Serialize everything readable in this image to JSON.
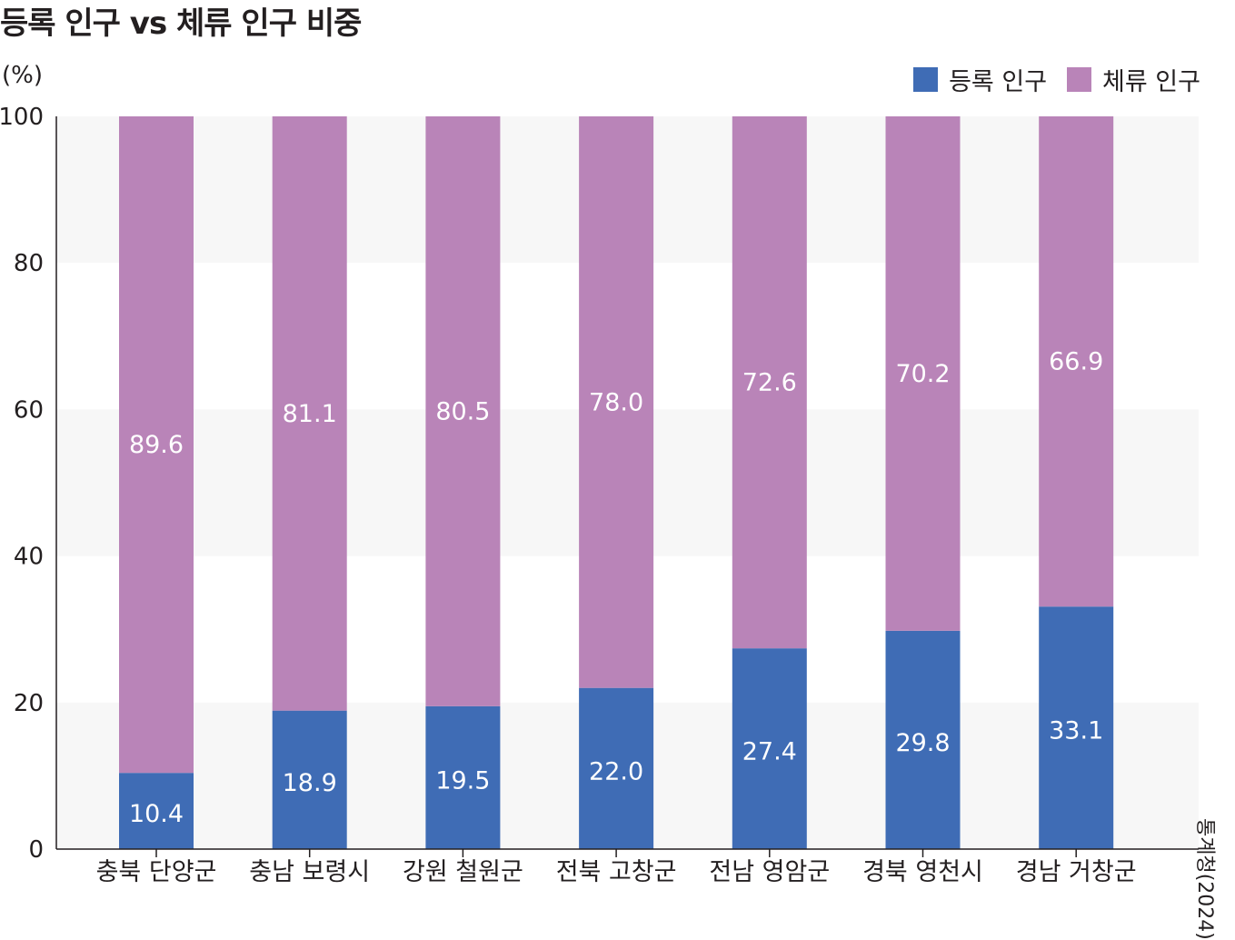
{
  "title": "등록 인구 vs 체류 인구 비중",
  "unit": "(%)",
  "source": "통계청(2024)",
  "colors": {
    "registered": "#3f6cb5",
    "staying": "#b984b8",
    "band": "#f7f7f7"
  },
  "chart_data": {
    "type": "bar",
    "stacked": true,
    "categories": [
      "충북 단양군",
      "충남 보령시",
      "강원 철원군",
      "전북 고창군",
      "전남 영암군",
      "경북 영천시",
      "경남 거창군"
    ],
    "series": [
      {
        "name": "등록 인구",
        "values": [
          10.4,
          18.9,
          19.5,
          22.0,
          27.4,
          29.8,
          33.1
        ],
        "labels": [
          "10.4",
          "18.9",
          "19.5",
          "22.0",
          "27.4",
          "29.8",
          "33.1"
        ]
      },
      {
        "name": "체류 인구",
        "values": [
          89.6,
          81.1,
          80.5,
          78.0,
          72.6,
          70.2,
          66.9
        ],
        "labels": [
          "89.6",
          "81.1",
          "80.5",
          "78.0",
          "72.6",
          "70.2",
          "66.9"
        ]
      }
    ],
    "ylim": [
      0,
      100
    ],
    "yticks": [
      "0",
      "20",
      "40",
      "60",
      "80",
      "100"
    ],
    "legend": "top-right",
    "grid": "alternating horizontal bands"
  }
}
